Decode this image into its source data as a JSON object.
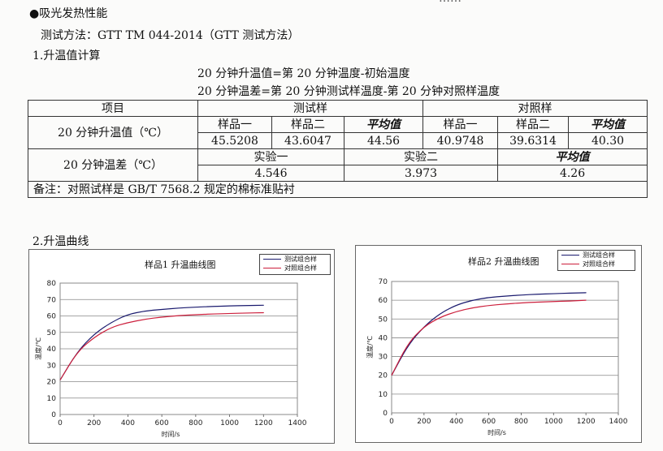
{
  "header_fragment": "……",
  "section": {
    "bullet": "●",
    "title": "吸光发热性能",
    "method": "测试方法：GTT TM 044-2014（GTT 测试方法）",
    "sub1": "1.升温值计算",
    "formula1": "20 分钟升温值=第 20 分钟温度-初始温度",
    "formula2": "20 分钟温差=第 20 分钟测试样温度-第 20 分钟对照样温度",
    "sub2": "2.升温曲线"
  },
  "table": {
    "item_header": "项目",
    "test_header": "测试样",
    "control_header": "对照样",
    "row1_label": "20 分钟升温值（℃）",
    "sample1": "样品一",
    "sample2": "样品二",
    "avg": "平均值",
    "test_values": [
      "45.5208",
      "43.6047",
      "44.56"
    ],
    "control_values": [
      "40.9748",
      "39.6314",
      "40.30"
    ],
    "row2_label": "20 分钟温差（℃）",
    "exp1": "实验一",
    "exp2": "实验二",
    "avg2": "平均值",
    "diff_values": [
      "4.546",
      "3.973",
      "4.26"
    ],
    "note": "备注：对照试样是 GB/T 7568.2 规定的棉标准贴衬"
  },
  "charts": [
    {
      "title": "样品1 升温曲线图",
      "legend": [
        "测试组合样",
        "对照组合样"
      ],
      "colors": [
        "#1a1a6e",
        "#cc1f3c"
      ],
      "ylabel": "温度/℃",
      "xlabel": "时间/s",
      "x_ticks": [
        "0",
        "200",
        "400",
        "600",
        "800",
        "1000",
        "1200",
        "1400"
      ],
      "y_ticks": [
        "0",
        "10",
        "20",
        "30",
        "40",
        "50",
        "60",
        "70",
        "80"
      ]
    },
    {
      "title": "样品2  升温曲线图",
      "legend": [
        "测试组合样",
        "对照组合样"
      ],
      "colors": [
        "#1a1a6e",
        "#cc1f3c"
      ],
      "ylabel": "温度/℃",
      "xlabel": "时间/s",
      "x_ticks": [
        "0",
        "200",
        "400",
        "600",
        "800",
        "1000",
        "1200",
        "1400"
      ],
      "y_ticks": [
        "0",
        "10",
        "20",
        "30",
        "40",
        "50",
        "60",
        "70"
      ]
    }
  ],
  "chart_data": [
    {
      "type": "line",
      "title": "样品1 升温曲线图",
      "xlabel": "时间/s",
      "ylabel": "温度/℃",
      "xlim": [
        0,
        1400
      ],
      "ylim": [
        0,
        80
      ],
      "grid": true,
      "legend_position": "top-right",
      "x": [
        0,
        100,
        200,
        300,
        400,
        500,
        600,
        700,
        800,
        900,
        1000,
        1100,
        1200
      ],
      "series": [
        {
          "name": "测试组合样",
          "values": [
            21,
            38,
            49,
            56,
            61,
            63,
            64,
            64.8,
            65.4,
            65.8,
            66.1,
            66.3,
            66.5
          ]
        },
        {
          "name": "对照组合样",
          "values": [
            21,
            38,
            47,
            53,
            56,
            58,
            59.3,
            60.2,
            60.8,
            61.2,
            61.5,
            61.8,
            62
          ]
        }
      ]
    },
    {
      "type": "line",
      "title": "样品2  升温曲线图",
      "xlabel": "时间/s",
      "ylabel": "温度/℃",
      "xlim": [
        0,
        1400
      ],
      "ylim": [
        0,
        70
      ],
      "grid": true,
      "legend_position": "top-right",
      "x": [
        0,
        100,
        200,
        300,
        400,
        500,
        600,
        700,
        800,
        900,
        1000,
        1100,
        1200
      ],
      "series": [
        {
          "name": "测试组合样",
          "values": [
            20,
            36,
            46,
            53,
            57.5,
            60,
            61.5,
            62.2,
            62.8,
            63.2,
            63.5,
            63.8,
            64
          ]
        },
        {
          "name": "对照组合样",
          "values": [
            20,
            37,
            46,
            51,
            54,
            56,
            57.2,
            58,
            58.6,
            59,
            59.3,
            59.6,
            60
          ]
        }
      ]
    }
  ]
}
